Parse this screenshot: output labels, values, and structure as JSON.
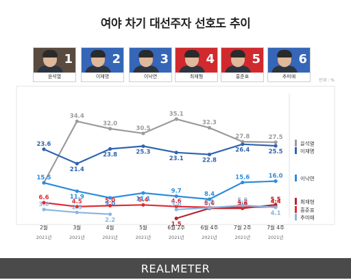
{
  "title": "여야 차기 대선주자 선호도 추이",
  "unit": "단위 : %",
  "brand": "REALMETER",
  "candidates": [
    {
      "rank": "1",
      "name": "윤석열",
      "color": "#5a4b40"
    },
    {
      "rank": "2",
      "name": "이재명",
      "color": "#3566b7"
    },
    {
      "rank": "3",
      "name": "이낙연",
      "color": "#3566b7"
    },
    {
      "rank": "4",
      "name": "최재형",
      "color": "#d02a2f"
    },
    {
      "rank": "5",
      "name": "홍준표",
      "color": "#d02a2f"
    },
    {
      "rank": "6",
      "name": "추미애",
      "color": "#3566b7"
    }
  ],
  "chart_data": {
    "type": "line",
    "categories": [
      "2월",
      "3월",
      "4월",
      "5월",
      "6월 2주",
      "6월 4주",
      "7월 2주",
      "7월 4주"
    ],
    "category_years": [
      "2021년",
      "2021년",
      "2021년",
      "2021년",
      "2021년",
      "2021년",
      "2021년",
      "2021년"
    ],
    "series": [
      {
        "name": "윤석열",
        "color": "#9b9b9b",
        "values": [
          15.5,
          34.4,
          32.0,
          30.5,
          35.1,
          32.3,
          27.8,
          27.5
        ]
      },
      {
        "name": "이재명",
        "color": "#2f64b0",
        "values": [
          23.6,
          21.4,
          23.8,
          25.3,
          23.1,
          22.8,
          26.4,
          25.5
        ]
      },
      {
        "name": "이낙연",
        "color": "#2d8ddc",
        "values": [
          15.5,
          11.9,
          9.0,
          11.1,
          9.7,
          8.4,
          15.6,
          16.0
        ]
      },
      {
        "name": "최재형",
        "color": "#b3242a",
        "values": [
          null,
          null,
          null,
          null,
          1.5,
          3.6,
          3.6,
          5.5
        ]
      },
      {
        "name": "홍준표",
        "color": "#e02b33",
        "values": [
          6.6,
          4.5,
          5.0,
          5.4,
          4.6,
          4.1,
          4.2,
          4.4
        ]
      },
      {
        "name": "추미애",
        "color": "#8db6e0",
        "values": [
          3.0,
          2.5,
          2.2,
          null,
          3.0,
          3.9,
          5.2,
          4.1
        ]
      }
    ]
  }
}
